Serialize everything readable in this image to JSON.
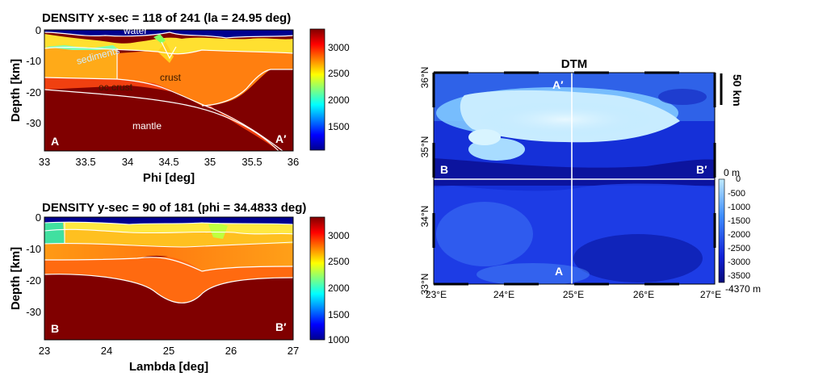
{
  "chart_data": [
    {
      "type": "heatmap",
      "title": "DENSITY x-sec = 118 of 241 (la = 24.95 deg)",
      "xlabel": "Phi [deg]",
      "ylabel": "Depth [km]",
      "xlim": [
        33,
        36
      ],
      "ylim": [
        -38,
        0
      ],
      "xticks": [
        "33",
        "33.5",
        "34",
        "34.5",
        "35",
        "35.5",
        "36"
      ],
      "yticks": [
        "0",
        "-10",
        "-20",
        "-30"
      ],
      "colorbar": {
        "ticks": [
          "3000",
          "2500",
          "2000",
          "1500"
        ],
        "colormap": "jet"
      },
      "corner_labels": [
        "A",
        "A′"
      ],
      "layers": [
        {
          "name": "water",
          "density": 1030
        },
        {
          "name": "sediments",
          "density": 2300
        },
        {
          "name": "crust",
          "density": 2800
        },
        {
          "name": "oc crust",
          "density": 2900
        },
        {
          "name": "mantle",
          "density": 3300
        }
      ]
    },
    {
      "type": "heatmap",
      "title": "DENSITY y-sec = 90 of 181 (phi = 34.4833 deg)",
      "xlabel": "Lambda [deg]",
      "ylabel": "Depth [km]",
      "xlim": [
        23,
        27
      ],
      "ylim": [
        -38,
        0
      ],
      "xticks": [
        "23",
        "24",
        "25",
        "26",
        "27"
      ],
      "yticks": [
        "0",
        "-10",
        "-20",
        "-30"
      ],
      "colorbar": {
        "ticks": [
          "3000",
          "2500",
          "2000",
          "1500",
          "1000"
        ],
        "colormap": "jet"
      },
      "corner_labels": [
        "B",
        "B′"
      ]
    },
    {
      "type": "heatmap",
      "title": "DTM",
      "xlim": [
        23,
        27
      ],
      "ylim": [
        33,
        36
      ],
      "xticks": [
        "23°E",
        "24°E",
        "25°E",
        "26°E",
        "27°E"
      ],
      "yticks": [
        "36°N",
        "35°N",
        "34°N",
        "33°N"
      ],
      "colorbar": {
        "ticks": [
          "0",
          "-500",
          "-1000",
          "-1500",
          "-2000",
          "-2500",
          "-3000",
          "-3500"
        ],
        "top_label": "0 m",
        "bottom_label": "-4370 m"
      },
      "scalebar": "50 km",
      "profiles": [
        {
          "name": "A-A′",
          "start": "A",
          "end": "A′",
          "lon": 24.95
        },
        {
          "name": "B-B′",
          "start": "B",
          "end": "B′",
          "lat": 34.4833
        }
      ]
    }
  ]
}
